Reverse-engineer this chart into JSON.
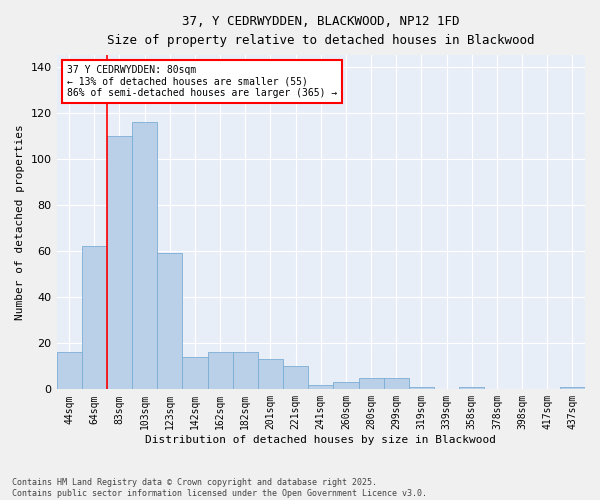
{
  "title_line1": "37, Y CEDRWYDDEN, BLACKWOOD, NP12 1FD",
  "title_line2": "Size of property relative to detached houses in Blackwood",
  "xlabel": "Distribution of detached houses by size in Blackwood",
  "ylabel": "Number of detached properties",
  "categories": [
    "44sqm",
    "64sqm",
    "83sqm",
    "103sqm",
    "123sqm",
    "142sqm",
    "162sqm",
    "182sqm",
    "201sqm",
    "221sqm",
    "241sqm",
    "260sqm",
    "280sqm",
    "299sqm",
    "319sqm",
    "339sqm",
    "358sqm",
    "378sqm",
    "398sqm",
    "417sqm",
    "437sqm"
  ],
  "values": [
    16,
    62,
    110,
    116,
    59,
    14,
    16,
    16,
    13,
    10,
    2,
    3,
    5,
    5,
    1,
    0,
    1,
    0,
    0,
    0,
    1
  ],
  "bar_color": "#bad0e8",
  "bar_edge_color": "#7aadd4",
  "fig_bg_color": "#f0f0f0",
  "ax_bg_color": "#e8eef8",
  "grid_color": "#ffffff",
  "ylim": [
    0,
    145
  ],
  "yticks": [
    0,
    20,
    40,
    60,
    80,
    100,
    120,
    140
  ],
  "red_line_x": 1.5,
  "annotation_text": "37 Y CEDRWYDDEN: 80sqm\n← 13% of detached houses are smaller (55)\n86% of semi-detached houses are larger (365) →",
  "footer_line1": "Contains HM Land Registry data © Crown copyright and database right 2025.",
  "footer_line2": "Contains public sector information licensed under the Open Government Licence v3.0."
}
